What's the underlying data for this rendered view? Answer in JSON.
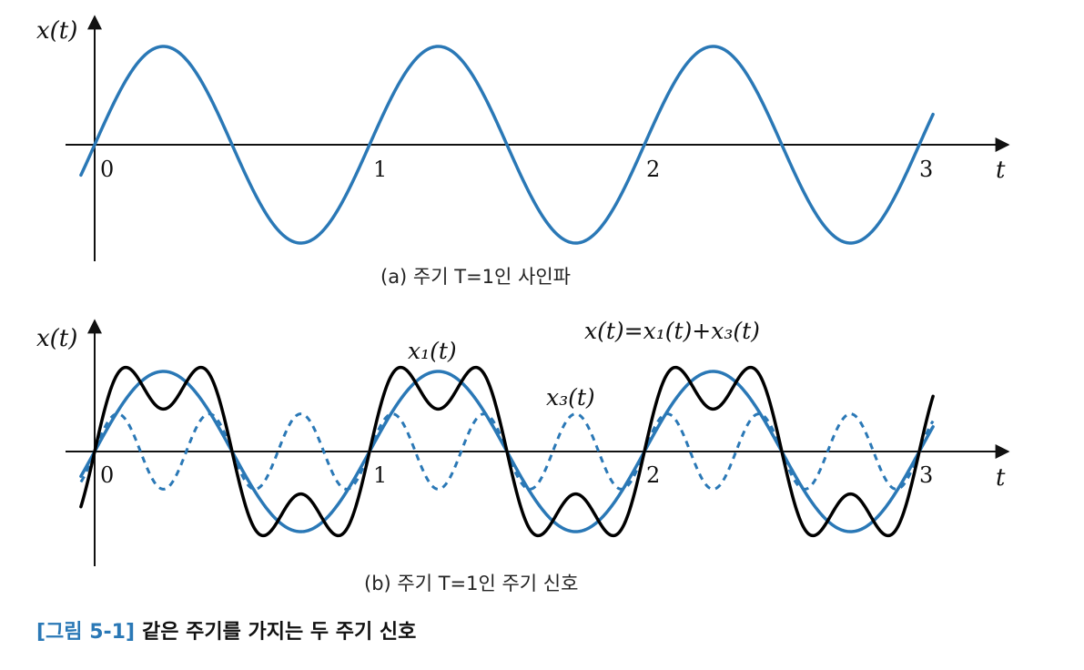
{
  "colors": {
    "axis": "#111111",
    "sine": "#2a78b6",
    "harmonic": "#2a78b6",
    "sum": "#000000",
    "caption_label": "#2a78b6"
  },
  "chart_data": [
    {
      "type": "line",
      "panel": "a",
      "ylabel": "x(t)",
      "xlabel": "t",
      "xticks": [
        "0",
        "1",
        "2",
        "3"
      ],
      "xlim": [
        0,
        3
      ],
      "caption": "(a) 주기 T=1인 사인파",
      "series": [
        {
          "formula": "sin(2πt)",
          "amplitude": 1.0,
          "frequency": 1,
          "color": "#2a78b6",
          "dash": "solid",
          "x": [
            0,
            0.25,
            0.5,
            0.75,
            1,
            1.25,
            1.5,
            1.75,
            2,
            2.25,
            2.5,
            2.75,
            3
          ],
          "y": [
            0,
            1,
            0,
            -1,
            0,
            1,
            0,
            -1,
            0,
            1,
            0,
            -1,
            0
          ]
        }
      ]
    },
    {
      "type": "line",
      "panel": "b",
      "ylabel": "x(t)",
      "xlabel": "t",
      "xticks": [
        "0",
        "1",
        "2",
        "3"
      ],
      "xlim": [
        0,
        3
      ],
      "caption": "(b) 주기 T=1인 주기 신호",
      "series": [
        {
          "name": "x₁(t)",
          "formula": "sin(2πt)",
          "amplitude": 1.0,
          "frequency": 1,
          "color": "#2a78b6",
          "dash": "solid"
        },
        {
          "name": "x₃(t)",
          "formula": "0.47·sin(6πt)",
          "amplitude": 0.47,
          "frequency": 3,
          "color": "#2a78b6",
          "dash": "dashed"
        },
        {
          "name": "x(t)=x₁(t)+x₃(t)",
          "formula": "x₁(t)+x₃(t)",
          "color": "#000000",
          "dash": "solid"
        }
      ],
      "annotations": [
        "x(t)=x₁(t)+x₃(t)",
        "x₁(t)",
        "x₃(t)"
      ]
    }
  ],
  "figure": {
    "label": "[그림 5-1]",
    "title": "같은 주기를 가지는 두 주기 신호"
  }
}
